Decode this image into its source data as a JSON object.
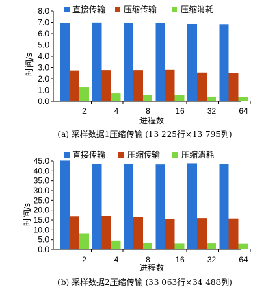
{
  "chart_data": [
    {
      "type": "bar",
      "categories": [
        "2",
        "4",
        "8",
        "16",
        "32",
        "64"
      ],
      "series": [
        {
          "name": "直接传输",
          "color": "#2a74d6",
          "values": [
            6.95,
            6.98,
            6.97,
            6.95,
            6.85,
            6.83
          ]
        },
        {
          "name": "压缩传输",
          "color": "#c0410f",
          "values": [
            2.75,
            2.78,
            2.78,
            2.8,
            2.56,
            2.52
          ]
        },
        {
          "name": "压缩消耗",
          "color": "#7ed640",
          "values": [
            1.27,
            0.72,
            0.6,
            0.55,
            0.43,
            0.42
          ]
        }
      ],
      "xlabel": "进程数",
      "ylabel": "时间/s",
      "ylim": [
        0,
        8
      ],
      "yticks": [
        "0.0",
        "1.0",
        "2.0",
        "3.0",
        "4.0",
        "5.0",
        "6.0",
        "7.0",
        "8.0"
      ],
      "legend": "top",
      "grid": false,
      "caption": "(a) 采样数据1压缩传输 (13 225行×13 795列)"
    },
    {
      "type": "bar",
      "categories": [
        "2",
        "4",
        "8",
        "16",
        "32",
        "64"
      ],
      "series": [
        {
          "name": "直接传输",
          "color": "#2a74d6",
          "values": [
            45.2,
            43.3,
            43.3,
            43.2,
            43.8,
            43.5
          ]
        },
        {
          "name": "压缩传输",
          "color": "#c0410f",
          "values": [
            17.0,
            17.1,
            16.6,
            15.7,
            16.0,
            15.8
          ]
        },
        {
          "name": "压缩消耗",
          "color": "#7ed640",
          "values": [
            8.2,
            4.6,
            3.5,
            3.0,
            3.1,
            2.9
          ]
        }
      ],
      "xlabel": "进程数",
      "ylabel": "时间/s",
      "ylim": [
        0,
        45
      ],
      "yticks": [
        "0.0",
        "5.0",
        "10.0",
        "15.0",
        "20.0",
        "25.0",
        "30.0",
        "35.0",
        "40.0",
        "45.0"
      ],
      "legend": "top",
      "grid": false,
      "caption": "(b) 采样数据2压缩传输 (33 063行×34 488列)"
    }
  ]
}
